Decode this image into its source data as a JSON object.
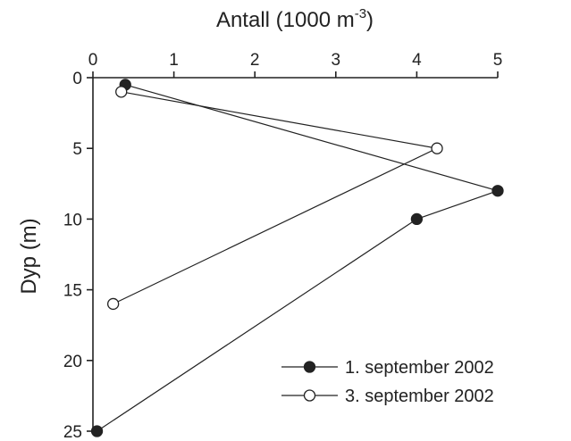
{
  "chart_data": {
    "type": "line",
    "xlabel": "Antall (1000 m",
    "xlabel_sup": "-3",
    "xlabel_close": ")",
    "ylabel": "Dyp (m)",
    "xlim": [
      0,
      5
    ],
    "ylim": [
      0,
      25
    ],
    "y_inverted": true,
    "x_axis_position": "top",
    "x_ticks": [
      0,
      1,
      2,
      3,
      4,
      5
    ],
    "y_ticks": [
      0,
      5,
      10,
      15,
      20,
      25
    ],
    "x_tick_labels": [
      "0",
      "1",
      "2",
      "3",
      "4",
      "5"
    ],
    "y_tick_labels": [
      "0",
      "5",
      "10",
      "15",
      "20",
      "25"
    ],
    "legend_position": "bottom-right",
    "series": [
      {
        "name": "1. september  2002",
        "marker": "filled-circle",
        "color": "#222222",
        "x": [
          0.4,
          5.0,
          4.0,
          0.05
        ],
        "y": [
          0.5,
          8,
          10,
          25
        ]
      },
      {
        "name": "3. september  2002",
        "marker": "open-circle",
        "color": "#222222",
        "x": [
          0.35,
          4.25,
          0.25
        ],
        "y": [
          1,
          5,
          16
        ]
      }
    ]
  }
}
